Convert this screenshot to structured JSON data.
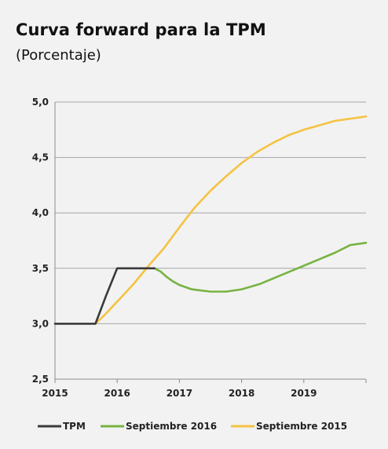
{
  "header": {
    "title": "Curva forward para la TPM",
    "subtitle": "(Porcentaje)"
  },
  "chart_data": {
    "type": "line",
    "title": "Curva forward para la TPM",
    "subtitle": "(Porcentaje)",
    "xlabel": "",
    "ylabel": "",
    "xlim": [
      2015,
      2020
    ],
    "ylim": [
      2.5,
      5.0
    ],
    "x_ticks": [
      "2015",
      "2016",
      "2017",
      "2018",
      "2019"
    ],
    "y_ticks": [
      "2,5",
      "3,0",
      "3,5",
      "4,0",
      "4,5",
      "5,0"
    ],
    "grid": "horizontal",
    "legend_position": "bottom",
    "series": [
      {
        "name": "TPM",
        "color": "#3a3a3a",
        "points": [
          [
            2015.0,
            3.0
          ],
          [
            2015.65,
            3.0
          ],
          [
            2015.82,
            3.25
          ],
          [
            2016.0,
            3.5
          ],
          [
            2016.6,
            3.5
          ]
        ]
      },
      {
        "name": "Septiembre 2016",
        "color": "#77b341",
        "points": [
          [
            2016.6,
            3.5
          ],
          [
            2016.7,
            3.47
          ],
          [
            2016.8,
            3.42
          ],
          [
            2016.9,
            3.38
          ],
          [
            2017.0,
            3.35
          ],
          [
            2017.2,
            3.31
          ],
          [
            2017.5,
            3.29
          ],
          [
            2017.75,
            3.29
          ],
          [
            2018.0,
            3.31
          ],
          [
            2018.3,
            3.36
          ],
          [
            2018.6,
            3.43
          ],
          [
            2018.9,
            3.5
          ],
          [
            2019.2,
            3.57
          ],
          [
            2019.5,
            3.64
          ],
          [
            2019.75,
            3.71
          ],
          [
            2020.0,
            3.73
          ]
        ]
      },
      {
        "name": "Septiembre 2015",
        "color": "#f5c342",
        "points": [
          [
            2015.65,
            3.0
          ],
          [
            2015.8,
            3.08
          ],
          [
            2016.0,
            3.2
          ],
          [
            2016.25,
            3.35
          ],
          [
            2016.5,
            3.52
          ],
          [
            2016.75,
            3.68
          ],
          [
            2017.0,
            3.87
          ],
          [
            2017.25,
            4.05
          ],
          [
            2017.5,
            4.2
          ],
          [
            2017.75,
            4.33
          ],
          [
            2018.0,
            4.45
          ],
          [
            2018.25,
            4.55
          ],
          [
            2018.5,
            4.63
          ],
          [
            2018.75,
            4.7
          ],
          [
            2019.0,
            4.75
          ],
          [
            2019.5,
            4.83
          ],
          [
            2020.0,
            4.87
          ]
        ]
      }
    ]
  }
}
